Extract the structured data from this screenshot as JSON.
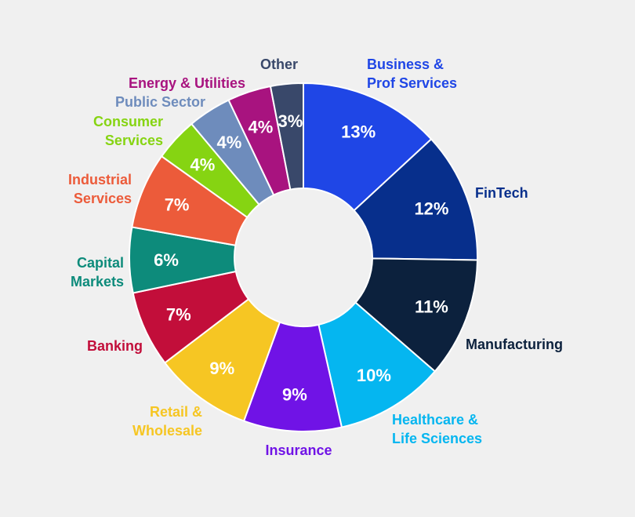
{
  "chart_data": {
    "type": "pie",
    "donut": true,
    "title": "",
    "slices": [
      {
        "label": [
          "Business &",
          "Prof Services"
        ],
        "value": 13,
        "display": "13%",
        "color": "#1f46e6"
      },
      {
        "label": [
          "FinTech"
        ],
        "value": 12,
        "display": "12%",
        "color": "#072f8c"
      },
      {
        "label": [
          "Manufacturing"
        ],
        "value": 11,
        "display": "11%",
        "color": "#0c213d"
      },
      {
        "label": [
          "Healthcare &",
          "Life Sciences"
        ],
        "value": 10,
        "display": "10%",
        "color": "#05b6f0"
      },
      {
        "label": [
          "Insurance"
        ],
        "value": 9,
        "display": "9%",
        "color": "#7013e6"
      },
      {
        "label": [
          "Retail &",
          "Wholesale"
        ],
        "value": 9,
        "display": "9%",
        "color": "#f6c623"
      },
      {
        "label": [
          "Banking"
        ],
        "value": 7,
        "display": "7%",
        "color": "#c20e3a"
      },
      {
        "label": [
          "Capital",
          "Markets"
        ],
        "value": 6,
        "display": "6%",
        "color": "#0d8b7b"
      },
      {
        "label": [
          "Industrial",
          "Services"
        ],
        "value": 7,
        "display": "7%",
        "color": "#ec5b3a"
      },
      {
        "label": [
          "Consumer",
          "Services"
        ],
        "value": 4,
        "display": "4%",
        "color": "#86d412"
      },
      {
        "label": [
          "Public Sector"
        ],
        "value": 4,
        "display": "4%",
        "color": "#6e8cbc"
      },
      {
        "label": [
          "Energy & Utilities"
        ],
        "value": 4,
        "display": "4%",
        "color": "#a8137f"
      },
      {
        "label": [
          "Other"
        ],
        "value": 3,
        "display": "3%",
        "color": "#39486a"
      }
    ]
  }
}
